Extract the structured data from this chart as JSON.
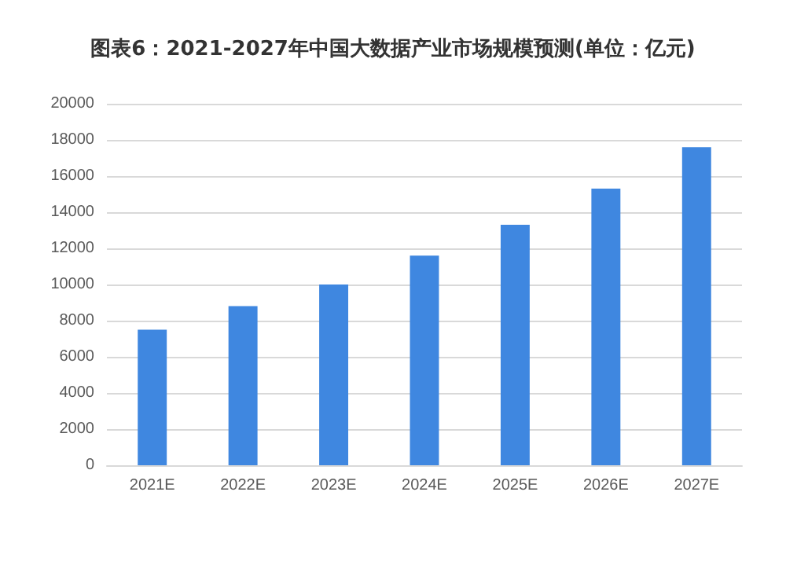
{
  "chart_data": {
    "type": "bar",
    "title": "图表6：2021-2027年中国大数据产业市场规模预测(单位：亿元)",
    "categories": [
      "2021E",
      "2022E",
      "2023E",
      "2024E",
      "2025E",
      "2026E",
      "2027E"
    ],
    "values": [
      7500,
      8800,
      10000,
      11600,
      13300,
      15300,
      17600
    ],
    "color": "#3f87e0",
    "ylim": [
      0,
      20000
    ],
    "yticks": [
      0,
      2000,
      4000,
      6000,
      8000,
      10000,
      12000,
      14000,
      16000,
      18000,
      20000
    ],
    "grid": "y"
  }
}
